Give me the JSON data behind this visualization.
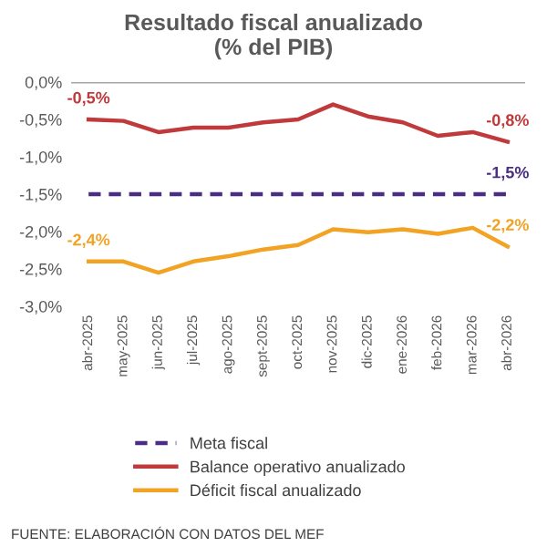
{
  "chart_data": {
    "type": "line",
    "title": "Resultado fiscal anualizado\n(% del PIB)",
    "categories": [
      "abr-2025",
      "may-2025",
      "jun-2025",
      "jul-2025",
      "ago-2025",
      "sept-2025",
      "oct-2025",
      "nov-2025",
      "dic-2025",
      "ene-2026",
      "feb-2026",
      "mar-2026",
      "abr-2026"
    ],
    "series": [
      {
        "name": "Meta fiscal",
        "color": "#4b2e83",
        "line_style": "dashed",
        "values": [
          -1.5,
          -1.5,
          -1.5,
          -1.5,
          -1.5,
          -1.5,
          -1.5,
          -1.5,
          -1.5,
          -1.5,
          -1.5,
          -1.5,
          -1.5
        ],
        "value_labels": [
          null,
          null,
          null,
          null,
          null,
          null,
          null,
          null,
          null,
          null,
          null,
          null,
          "-1,5%"
        ]
      },
      {
        "name": "Balance operativo anualizado",
        "color": "#c0393b",
        "line_style": "solid",
        "values": [
          -0.5,
          -0.52,
          -0.67,
          -0.61,
          -0.61,
          -0.54,
          -0.5,
          -0.3,
          -0.46,
          -0.54,
          -0.72,
          -0.67,
          -0.8
        ],
        "value_labels": [
          "-0,5%",
          null,
          null,
          null,
          null,
          null,
          null,
          null,
          null,
          null,
          null,
          null,
          "-0,8%"
        ]
      },
      {
        "name": "Déficit fiscal anualizado",
        "color": "#f2a324",
        "line_style": "solid",
        "values": [
          -2.4,
          -2.4,
          -2.55,
          -2.4,
          -2.33,
          -2.24,
          -2.18,
          -1.97,
          -2.01,
          -1.97,
          -2.03,
          -1.95,
          -2.2
        ],
        "value_labels": [
          "-2,4%",
          null,
          null,
          null,
          null,
          null,
          null,
          null,
          null,
          null,
          null,
          null,
          "-2,2%"
        ]
      }
    ],
    "ylim": [
      -3.0,
      0.0
    ],
    "yticks": [
      {
        "value": 0.0,
        "label": "0,0%"
      },
      {
        "value": -0.5,
        "label": "-0,5%"
      },
      {
        "value": -1.0,
        "label": "-1,0%"
      },
      {
        "value": -1.5,
        "label": "-1,5%"
      },
      {
        "value": -2.0,
        "label": "-2,0%"
      },
      {
        "value": -2.5,
        "label": "-2,5%"
      },
      {
        "value": -3.0,
        "label": "-3,0%"
      }
    ],
    "ref_lines": [
      {
        "axis": "y",
        "value": 0.0,
        "label": null,
        "color": "#a6a6a6"
      }
    ],
    "grid": false,
    "legend": "bottom",
    "marker": "none",
    "annotations": [
      "FUENTE: ELABORACIÓN CON DATOS DEL MEF"
    ]
  }
}
